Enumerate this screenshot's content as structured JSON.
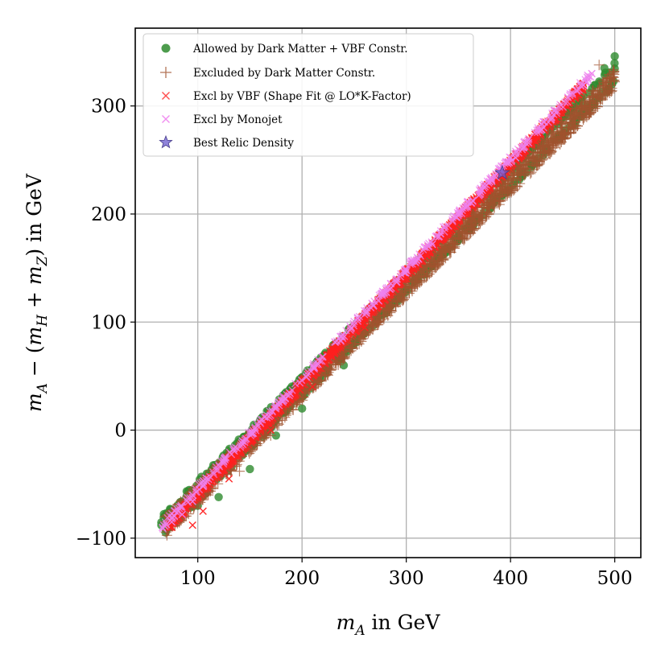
{
  "chart_data": {
    "type": "scatter",
    "title": "",
    "xlabel": {
      "var": "m",
      "sub": "A",
      "rest": " in GeV"
    },
    "ylabel": {
      "a": "m",
      "a_sub": "A",
      "mid": " − (",
      "b": "m",
      "b_sub": "H",
      "plus": " + ",
      "c": "m",
      "c_sub": "Z",
      "rest": ") in GeV"
    },
    "xlim": [
      40,
      525
    ],
    "ylim": [
      -118,
      372
    ],
    "xticks": [
      100,
      200,
      300,
      400,
      500
    ],
    "yticks": [
      -100,
      0,
      100,
      200,
      300
    ],
    "xtick_labels": [
      "100",
      "200",
      "300",
      "400",
      "500"
    ],
    "ytick_labels": [
      "−100",
      "0",
      "100",
      "200",
      "300"
    ],
    "grid": true,
    "legend_position": "top-left",
    "series": [
      {
        "name": "Allowed by Dark Matter + VBF Constr.",
        "marker": "circle",
        "color": "#2e8b2e",
        "band": {
          "x_from": 65,
          "x_to": 500,
          "center_at_start": -90,
          "center_at_end": 330,
          "halfwidth": 9
        },
        "points": [
          [
            65,
            -88
          ],
          [
            100,
            -70
          ],
          [
            120,
            -62
          ],
          [
            150,
            -36
          ],
          [
            175,
            -5
          ],
          [
            200,
            20
          ],
          [
            240,
            60
          ],
          [
            280,
            108
          ],
          [
            320,
            150
          ],
          [
            350,
            188
          ],
          [
            390,
            228
          ],
          [
            430,
            270
          ],
          [
            465,
            305
          ],
          [
            490,
            335
          ],
          [
            500,
            346
          ]
        ]
      },
      {
        "name": "Excluded by Dark Matter Constr.",
        "marker": "plus",
        "color": "#a0522d",
        "band": {
          "x_from": 68,
          "x_to": 500,
          "center_at_start": -90,
          "center_at_end": 325,
          "halfwidth": 10
        },
        "points": [
          [
            80,
            -85
          ],
          [
            110,
            -60
          ],
          [
            140,
            -38
          ],
          [
            170,
            -5
          ],
          [
            200,
            30
          ],
          [
            230,
            70
          ],
          [
            260,
            100
          ],
          [
            290,
            130
          ],
          [
            330,
            175
          ],
          [
            370,
            215
          ],
          [
            410,
            258
          ],
          [
            450,
            295
          ],
          [
            485,
            338
          ],
          [
            495,
            315
          ]
        ]
      },
      {
        "name": "Excl by VBF (Shape Fit @ LO*K-Factor)",
        "marker": "x",
        "color": "#ff2020",
        "band": {
          "x_from": 72,
          "x_to": 470,
          "center_at_start": -88,
          "center_at_end": 318,
          "halfwidth": 4
        },
        "points": [
          [
            75,
            -90
          ],
          [
            95,
            -88
          ],
          [
            105,
            -75
          ],
          [
            130,
            -45
          ],
          [
            170,
            0
          ],
          [
            210,
            40
          ],
          [
            260,
            95
          ],
          [
            300,
            140
          ],
          [
            340,
            185
          ],
          [
            380,
            225
          ],
          [
            420,
            265
          ],
          [
            455,
            300
          ],
          [
            470,
            318
          ]
        ]
      },
      {
        "name": "Excl by Monojet",
        "marker": "x",
        "color": "#ee82ee",
        "band": {
          "x_from": 66,
          "x_to": 478,
          "center_at_start": -89,
          "center_at_end": 330,
          "halfwidth": 3
        },
        "points": [
          [
            66,
            -90
          ],
          [
            75,
            -85
          ],
          [
            85,
            -78
          ],
          [
            95,
            -66
          ],
          [
            105,
            -52
          ],
          [
            325,
            172
          ],
          [
            350,
            200
          ],
          [
            380,
            230
          ],
          [
            405,
            252
          ],
          [
            430,
            278
          ],
          [
            455,
            308
          ],
          [
            478,
            330
          ]
        ]
      },
      {
        "name": "Best Relic Density",
        "marker": "star",
        "color": "#6a5acd",
        "points": [
          [
            392,
            238
          ]
        ]
      }
    ]
  }
}
